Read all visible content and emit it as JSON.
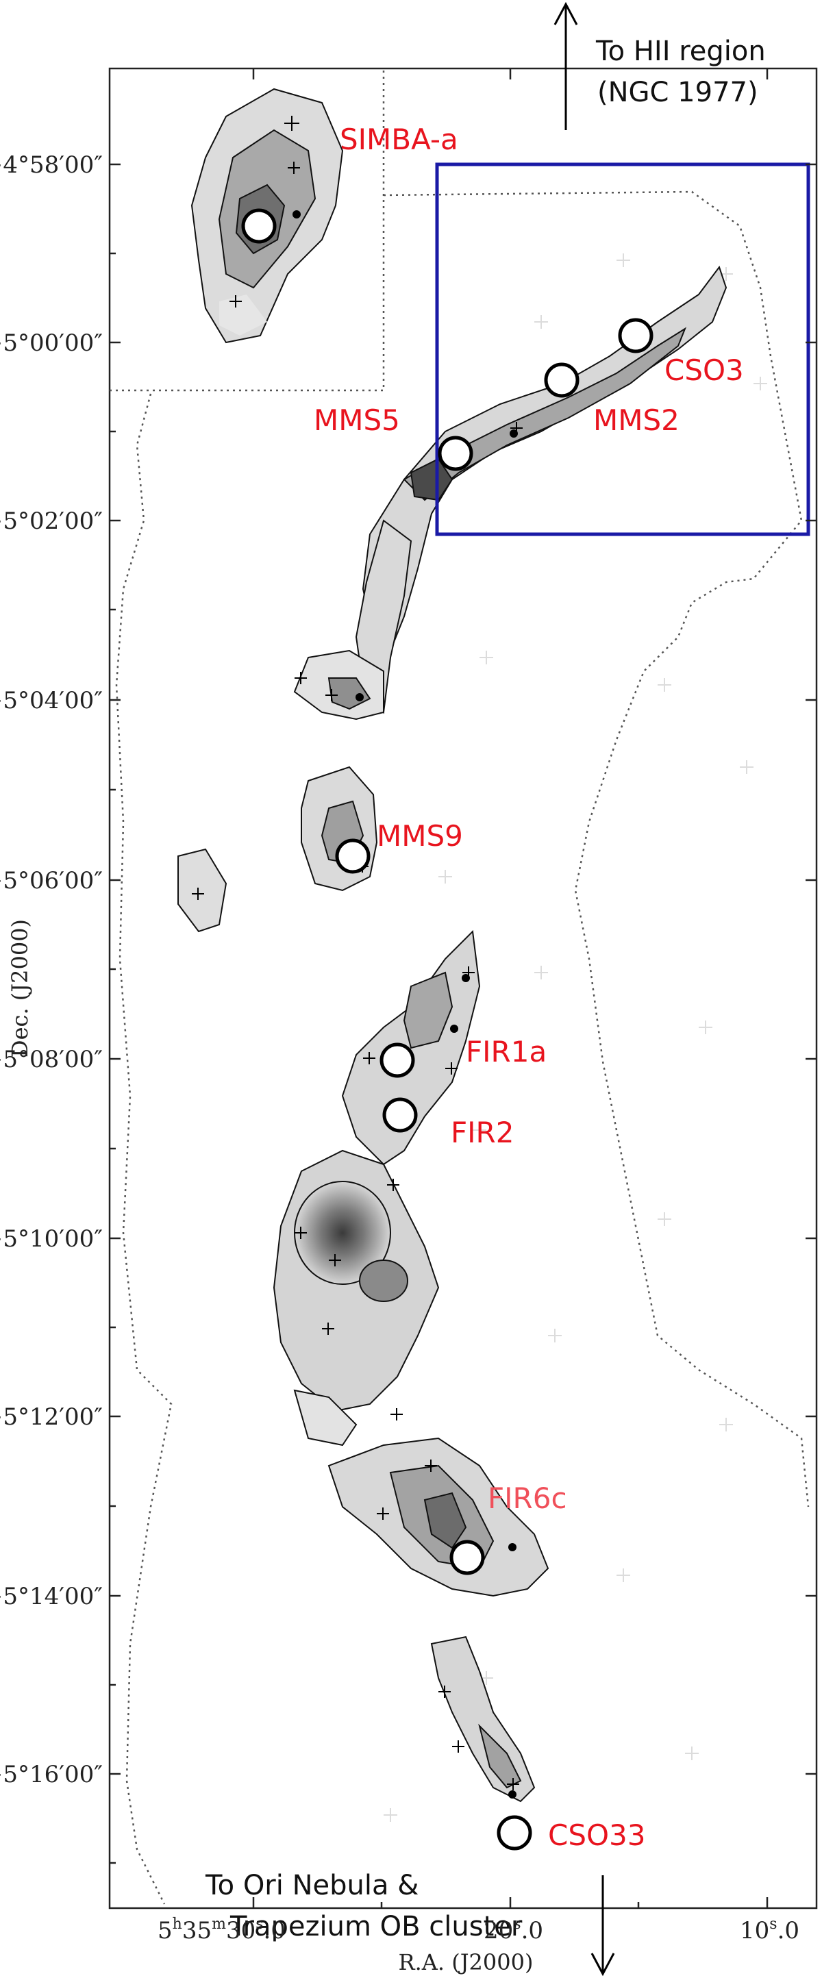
{
  "axes": {
    "y_title": "Dec. (J2000)",
    "x_title": "R.A. (J2000)",
    "y_ticks": [
      "−4°58′00″",
      "−5°00′00″",
      "−5°02′00″",
      "−5°04′00″",
      "−5°06′00″",
      "−5°08′00″",
      "−5°10′00″",
      "−5°12′00″",
      "−5°14′00″",
      "−5°16′00″"
    ],
    "x_ticks": [
      "5h35m30.0s",
      "20.0s",
      "10.0s"
    ]
  },
  "x_tick_parts": {
    "t1_a": "5",
    "t1_b": "h",
    "t1_c": "35",
    "t1_d": "m",
    "t1_e": "30",
    "t1_f": "s",
    "t1_g": ".0",
    "t2_a": "20",
    "t2_b": "s",
    "t2_c": ".0",
    "t3_a": "10",
    "t3_b": "s",
    "t3_c": ".0"
  },
  "sources": [
    {
      "name": "SIMBA-a"
    },
    {
      "name": "MMS5"
    },
    {
      "name": "MMS2"
    },
    {
      "name": "CSO3"
    },
    {
      "name": "MMS9"
    },
    {
      "name": "FIR1a"
    },
    {
      "name": "FIR2"
    },
    {
      "name": "FIR6c"
    },
    {
      "name": "CSO33"
    }
  ],
  "annotations": {
    "top_line1": "To HII region",
    "top_line2": "(NGC 1977)",
    "bottom_line1": "To Ori Nebula &",
    "bottom_line2": "Trapezium OB cluster"
  },
  "colors": {
    "source_label": "#e8141e",
    "highlight_box": "#1a1aa6",
    "contour": "#111111"
  }
}
